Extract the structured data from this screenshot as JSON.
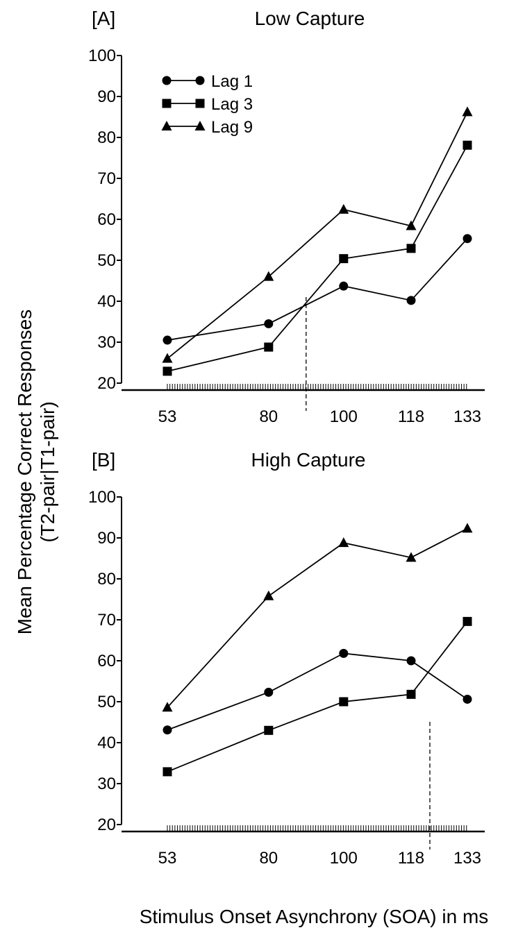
{
  "ylabel_line1": "Mean Percentage Correct Responses",
  "ylabel_line2": "(T2-pair|T1-pair)",
  "xlabel": "Stimulus Onset Asynchrony (SOA) in ms",
  "chart_data": [
    {
      "type": "line",
      "panel": "[A]",
      "title": "Low Capture",
      "x": [
        53,
        80,
        100,
        118,
        133
      ],
      "xticks": [
        "53",
        "80",
        "100",
        "118",
        "133"
      ],
      "xlim": [
        53,
        133
      ],
      "yticks": [
        "20",
        "30",
        "40",
        "50",
        "60",
        "70",
        "80",
        "90",
        "100"
      ],
      "ylim": [
        20,
        100
      ],
      "legend_position": "top-left",
      "reference_line_x": 90,
      "series": [
        {
          "name": "Lag 1",
          "marker": "circle",
          "values": [
            30.5,
            34.5,
            43.7,
            40.2,
            55.3
          ]
        },
        {
          "name": "Lag 3",
          "marker": "square",
          "values": [
            22.9,
            28.8,
            50.4,
            52.9,
            78.1
          ]
        },
        {
          "name": "Lag 9",
          "marker": "triangle",
          "values": [
            26.0,
            46.0,
            62.4,
            58.4,
            86.2
          ]
        }
      ]
    },
    {
      "type": "line",
      "panel": "[B]",
      "title": "High Capture",
      "x": [
        53,
        80,
        100,
        118,
        133
      ],
      "xticks": [
        "53",
        "80",
        "100",
        "118",
        "133"
      ],
      "xlim": [
        53,
        133
      ],
      "yticks": [
        "20",
        "30",
        "40",
        "50",
        "60",
        "70",
        "80",
        "90",
        "100"
      ],
      "ylim": [
        20,
        100
      ],
      "reference_line_x": 123,
      "series": [
        {
          "name": "Lag 1",
          "marker": "circle",
          "values": [
            43.1,
            52.3,
            61.8,
            60.0,
            50.6
          ]
        },
        {
          "name": "Lag 3",
          "marker": "square",
          "values": [
            32.9,
            43.0,
            50.0,
            51.8,
            69.6
          ]
        },
        {
          "name": "Lag 9",
          "marker": "triangle",
          "values": [
            48.6,
            75.8,
            88.8,
            85.2,
            92.3
          ]
        }
      ]
    }
  ]
}
